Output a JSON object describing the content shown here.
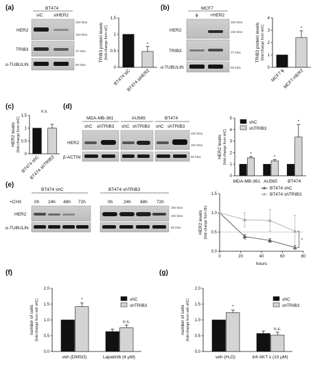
{
  "panel_a": {
    "label": "(a)",
    "blot": {
      "header": "BT474",
      "lanes": [
        "siC",
        "siHER2"
      ],
      "rows": [
        "HER2",
        "TRIB3",
        "α-TUBULIN"
      ],
      "mw": [
        "250 kDa",
        "150 kDa",
        "37 kDa",
        "50 kDa"
      ]
    }
  },
  "panel_b": {
    "label": "(b)",
    "blot": {
      "header": "MCF7",
      "lanes": [
        "ϕ",
        "+HER2"
      ],
      "rows": [
        "HER2",
        "TRIB3",
        "α-TUBULIN"
      ],
      "mw": [
        "250 kDa",
        "150 kDa",
        "37 kDa",
        "50 kDa"
      ]
    }
  },
  "panel_c": {
    "label": "(c)"
  },
  "panel_d": {
    "label": "(d)",
    "blot": {
      "groups": [
        "MDA-MB-361",
        "AU565",
        "BT474"
      ],
      "lanes": [
        "shC",
        "shTRIB3"
      ],
      "rows": [
        "HER2",
        "β-ACTIN"
      ],
      "mw": [
        "250 kDa",
        "150 kDa",
        "50 kDa"
      ]
    }
  },
  "panel_e": {
    "label": "(e)",
    "blot": {
      "groups": [
        "BT474 shC",
        "BT474 shTRIB3"
      ],
      "treatment": "+CHX",
      "times": [
        "0h",
        "24h",
        "48h",
        "72h"
      ],
      "rows": [
        "HER2",
        "α-TUBULIN"
      ],
      "mw": [
        "250 kDa",
        "150 kDa",
        "50 kDa"
      ]
    }
  },
  "panel_f": {
    "label": "(f)"
  },
  "panel_g": {
    "label": "(g)"
  },
  "chart_data": [
    {
      "panel": "a",
      "type": "bar",
      "categories": [
        "BT474 siC",
        "BT474 siHER2"
      ],
      "values": [
        1.0,
        0.48
      ],
      "errors": [
        0,
        0.15
      ],
      "colors": [
        "#111111",
        "#d4d4d4"
      ],
      "ylabel": "TRIB3 protein levels",
      "ylabel2": "(fold change from siC)",
      "ylim": [
        0,
        1.5
      ],
      "yticks": [
        "0",
        "0.5",
        "1",
        "1.5"
      ],
      "significance": [
        "",
        "*"
      ]
    },
    {
      "panel": "b",
      "type": "bar",
      "categories": [
        "MCF7 ϕ",
        "MCF7-HER2"
      ],
      "values": [
        1.0,
        2.4
      ],
      "errors": [
        0,
        0.55
      ],
      "colors": [
        "#111111",
        "#d4d4d4"
      ],
      "ylabel": "TRIB3 protein levels",
      "ylabel2": "(fold change from shC)",
      "ylim": [
        0,
        4
      ],
      "yticks": [
        "0",
        "1",
        "2",
        "3",
        "4"
      ],
      "significance": [
        "",
        "*"
      ]
    },
    {
      "panel": "c",
      "type": "bar",
      "categories": [
        "BT474 shC",
        "BT474 shTRIB3"
      ],
      "values": [
        1.0,
        1.0
      ],
      "errors": [
        0,
        0.15
      ],
      "colors": [
        "#111111",
        "#d4d4d4"
      ],
      "ylabel": "HER2 levels",
      "ylabel2": "(fold change from shC)",
      "ylim": [
        0,
        1.5
      ],
      "yticks": [
        "0",
        "0.5",
        "1",
        "1.5"
      ],
      "annotation": "n.s."
    },
    {
      "panel": "d",
      "type": "bar",
      "categories": [
        "MDA-MB-361",
        "AU565",
        "BT474"
      ],
      "series": [
        {
          "name": "shC",
          "values": [
            1.0,
            1.0,
            1.0
          ],
          "errors": [
            0,
            0,
            0
          ],
          "color": "#111111"
        },
        {
          "name": "shTRIB3",
          "values": [
            1.55,
            1.3,
            3.35
          ],
          "errors": [
            0.12,
            0.1,
            1.1
          ],
          "color": "#d4d4d4"
        }
      ],
      "ylabel": "HER2 levels",
      "ylabel2": "(fold change from shC)",
      "ylim": [
        0,
        5
      ],
      "yticks": [
        "0",
        "1",
        "2",
        "3",
        "4",
        "5"
      ],
      "significance": [
        "*",
        "*",
        "*"
      ],
      "legend": "top-left"
    },
    {
      "panel": "e",
      "type": "line",
      "x": [
        0,
        24,
        48,
        72
      ],
      "xlabel": "hours",
      "xticks": [
        "0",
        "20",
        "40",
        "60",
        "80"
      ],
      "xlim": [
        0,
        80
      ],
      "series": [
        {
          "name": "BT474 shC",
          "values": [
            1.0,
            0.38,
            0.28,
            0.1
          ],
          "errors": [
            0,
            0.06,
            0.05,
            0.05
          ],
          "color": "#555555"
        },
        {
          "name": "BT474 shTRIB3",
          "values": [
            1.0,
            0.82,
            0.8,
            0.52
          ],
          "errors": [
            0,
            0.18,
            0.28,
            0.42
          ],
          "color": "#aaaaaa"
        }
      ],
      "ylabel": "HER2 levels",
      "ylabel2": "(fold change from 0h)",
      "ylim": [
        0,
        1.5
      ],
      "yticks": [
        "0.0",
        "0.5",
        "1.0",
        "1.5"
      ],
      "significance": "*",
      "legend": "top-right"
    },
    {
      "panel": "f",
      "type": "bar",
      "categories": [
        "veh (DMSO)",
        "Lapatinib (4 μM)"
      ],
      "series": [
        {
          "name": "shC",
          "values": [
            1.0,
            0.63
          ],
          "errors": [
            0,
            0.08
          ],
          "color": "#111111"
        },
        {
          "name": "shTRIB3",
          "values": [
            1.42,
            0.75
          ],
          "errors": [
            0.12,
            0.09
          ],
          "color": "#d4d4d4"
        }
      ],
      "ylabel": "number of cells",
      "ylabel2": "(fold change from veh shC)",
      "ylim": [
        0,
        2.0
      ],
      "yticks": [
        "0.0",
        "0.5",
        "1.0",
        "1.5",
        "2.0"
      ],
      "annotations": [
        "*",
        "n.s."
      ],
      "legend": "top-right"
    },
    {
      "panel": "g",
      "type": "bar",
      "categories": [
        "veh (H₂O)",
        "inh AKT x (10 μM)"
      ],
      "series": [
        {
          "name": "shC",
          "values": [
            1.0,
            0.57
          ],
          "errors": [
            0,
            0.08
          ],
          "color": "#111111"
        },
        {
          "name": "shTRIB3",
          "values": [
            1.23,
            0.52
          ],
          "errors": [
            0.08,
            0.09
          ],
          "color": "#d4d4d4"
        }
      ],
      "ylabel": "number of cells",
      "ylabel2": "(fold change from veh shC)",
      "ylim": [
        0,
        2.0
      ],
      "yticks": [
        "0.0",
        "0.5",
        "1.0",
        "1.5",
        "2.0"
      ],
      "annotations": [
        "*",
        "n.s."
      ],
      "legend": "top-right"
    }
  ]
}
